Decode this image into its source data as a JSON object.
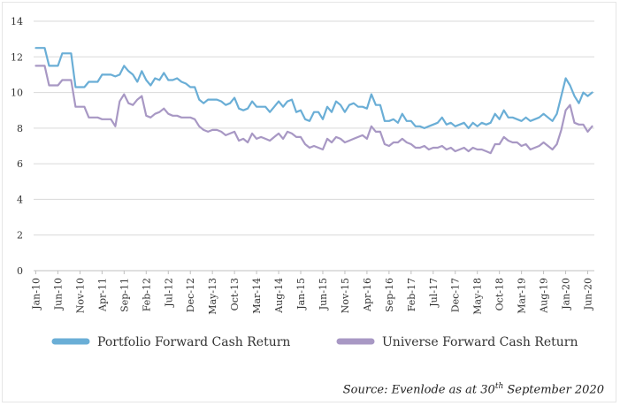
{
  "chart_data": {
    "type": "line",
    "title": "",
    "xlabel": "",
    "ylabel": "",
    "ylim": [
      0,
      14
    ],
    "yticks": [
      0,
      2,
      4,
      6,
      8,
      10,
      12,
      14
    ],
    "grid": "horizontal",
    "legend_position": "bottom",
    "x_tick_labels": [
      "Jan-10",
      "Jun-10",
      "Nov-10",
      "Apr-11",
      "Sep-11",
      "Feb-12",
      "Jul-12",
      "Dec-12",
      "May-13",
      "Oct-13",
      "Mar-14",
      "Aug-14",
      "Jan-15",
      "Jun-15",
      "Nov-15",
      "Apr-16",
      "Sep-16",
      "Feb-17",
      "Jul-17",
      "Dec-17",
      "May-18",
      "Oct-18",
      "Mar-19",
      "Aug-19",
      "Jan-20",
      "Jun-20"
    ],
    "x_start": "2010-01",
    "x_end": "2020-09",
    "series": [
      {
        "name": "Portfolio Forward Cash Return",
        "color": "#6aaed6",
        "values": [
          12.5,
          12.5,
          12.5,
          11.5,
          11.5,
          11.5,
          12.2,
          12.2,
          12.2,
          10.3,
          10.3,
          10.3,
          10.6,
          10.6,
          10.6,
          11.0,
          11.0,
          11.0,
          10.9,
          11.0,
          11.5,
          11.2,
          11.0,
          10.6,
          11.2,
          10.7,
          10.4,
          10.8,
          10.7,
          11.1,
          10.7,
          10.7,
          10.8,
          10.6,
          10.5,
          10.3,
          10.3,
          9.6,
          9.4,
          9.6,
          9.6,
          9.6,
          9.5,
          9.3,
          9.4,
          9.7,
          9.1,
          9.0,
          9.1,
          9.5,
          9.2,
          9.2,
          9.2,
          8.9,
          9.2,
          9.5,
          9.2,
          9.5,
          9.6,
          8.9,
          9.0,
          8.5,
          8.4,
          8.9,
          8.9,
          8.5,
          9.2,
          8.9,
          9.5,
          9.3,
          8.9,
          9.3,
          9.4,
          9.2,
          9.2,
          9.1,
          9.9,
          9.3,
          9.3,
          8.4,
          8.4,
          8.5,
          8.3,
          8.8,
          8.4,
          8.4,
          8.1,
          8.1,
          8.0,
          8.1,
          8.2,
          8.3,
          8.6,
          8.2,
          8.3,
          8.1,
          8.2,
          8.3,
          8.0,
          8.3,
          8.1,
          8.3,
          8.2,
          8.3,
          8.8,
          8.5,
          9.0,
          8.6,
          8.6,
          8.5,
          8.4,
          8.6,
          8.4,
          8.5,
          8.6,
          8.8,
          8.6,
          8.4,
          8.8,
          9.8,
          10.8,
          10.4,
          9.8,
          9.4,
          10.0,
          9.8,
          10.0
        ]
      },
      {
        "name": "Universe Forward Cash Return",
        "color": "#a898c4",
        "values": [
          11.5,
          11.5,
          11.5,
          10.4,
          10.4,
          10.4,
          10.7,
          10.7,
          10.7,
          9.2,
          9.2,
          9.2,
          8.6,
          8.6,
          8.6,
          8.5,
          8.5,
          8.5,
          8.1,
          9.5,
          9.9,
          9.4,
          9.3,
          9.6,
          9.8,
          8.7,
          8.6,
          8.8,
          8.9,
          9.1,
          8.8,
          8.7,
          8.7,
          8.6,
          8.6,
          8.6,
          8.5,
          8.1,
          7.9,
          7.8,
          7.9,
          7.9,
          7.8,
          7.6,
          7.7,
          7.8,
          7.3,
          7.4,
          7.2,
          7.7,
          7.4,
          7.5,
          7.4,
          7.3,
          7.5,
          7.7,
          7.4,
          7.8,
          7.7,
          7.5,
          7.5,
          7.1,
          6.9,
          7.0,
          6.9,
          6.8,
          7.4,
          7.2,
          7.5,
          7.4,
          7.2,
          7.3,
          7.4,
          7.5,
          7.6,
          7.4,
          8.1,
          7.8,
          7.8,
          7.1,
          7.0,
          7.2,
          7.2,
          7.4,
          7.2,
          7.1,
          6.9,
          6.9,
          7.0,
          6.8,
          6.9,
          6.9,
          7.0,
          6.8,
          6.9,
          6.7,
          6.8,
          6.9,
          6.7,
          6.9,
          6.8,
          6.8,
          6.7,
          6.6,
          7.1,
          7.1,
          7.5,
          7.3,
          7.2,
          7.2,
          7.0,
          7.1,
          6.8,
          6.9,
          7.0,
          7.2,
          7.0,
          6.8,
          7.1,
          7.9,
          9.0,
          9.3,
          8.3,
          8.2,
          8.2,
          7.8,
          8.1
        ]
      }
    ]
  },
  "source": {
    "prefix": "Source: Evenlode as at 30",
    "sup": "th",
    "suffix": " September 2020"
  }
}
